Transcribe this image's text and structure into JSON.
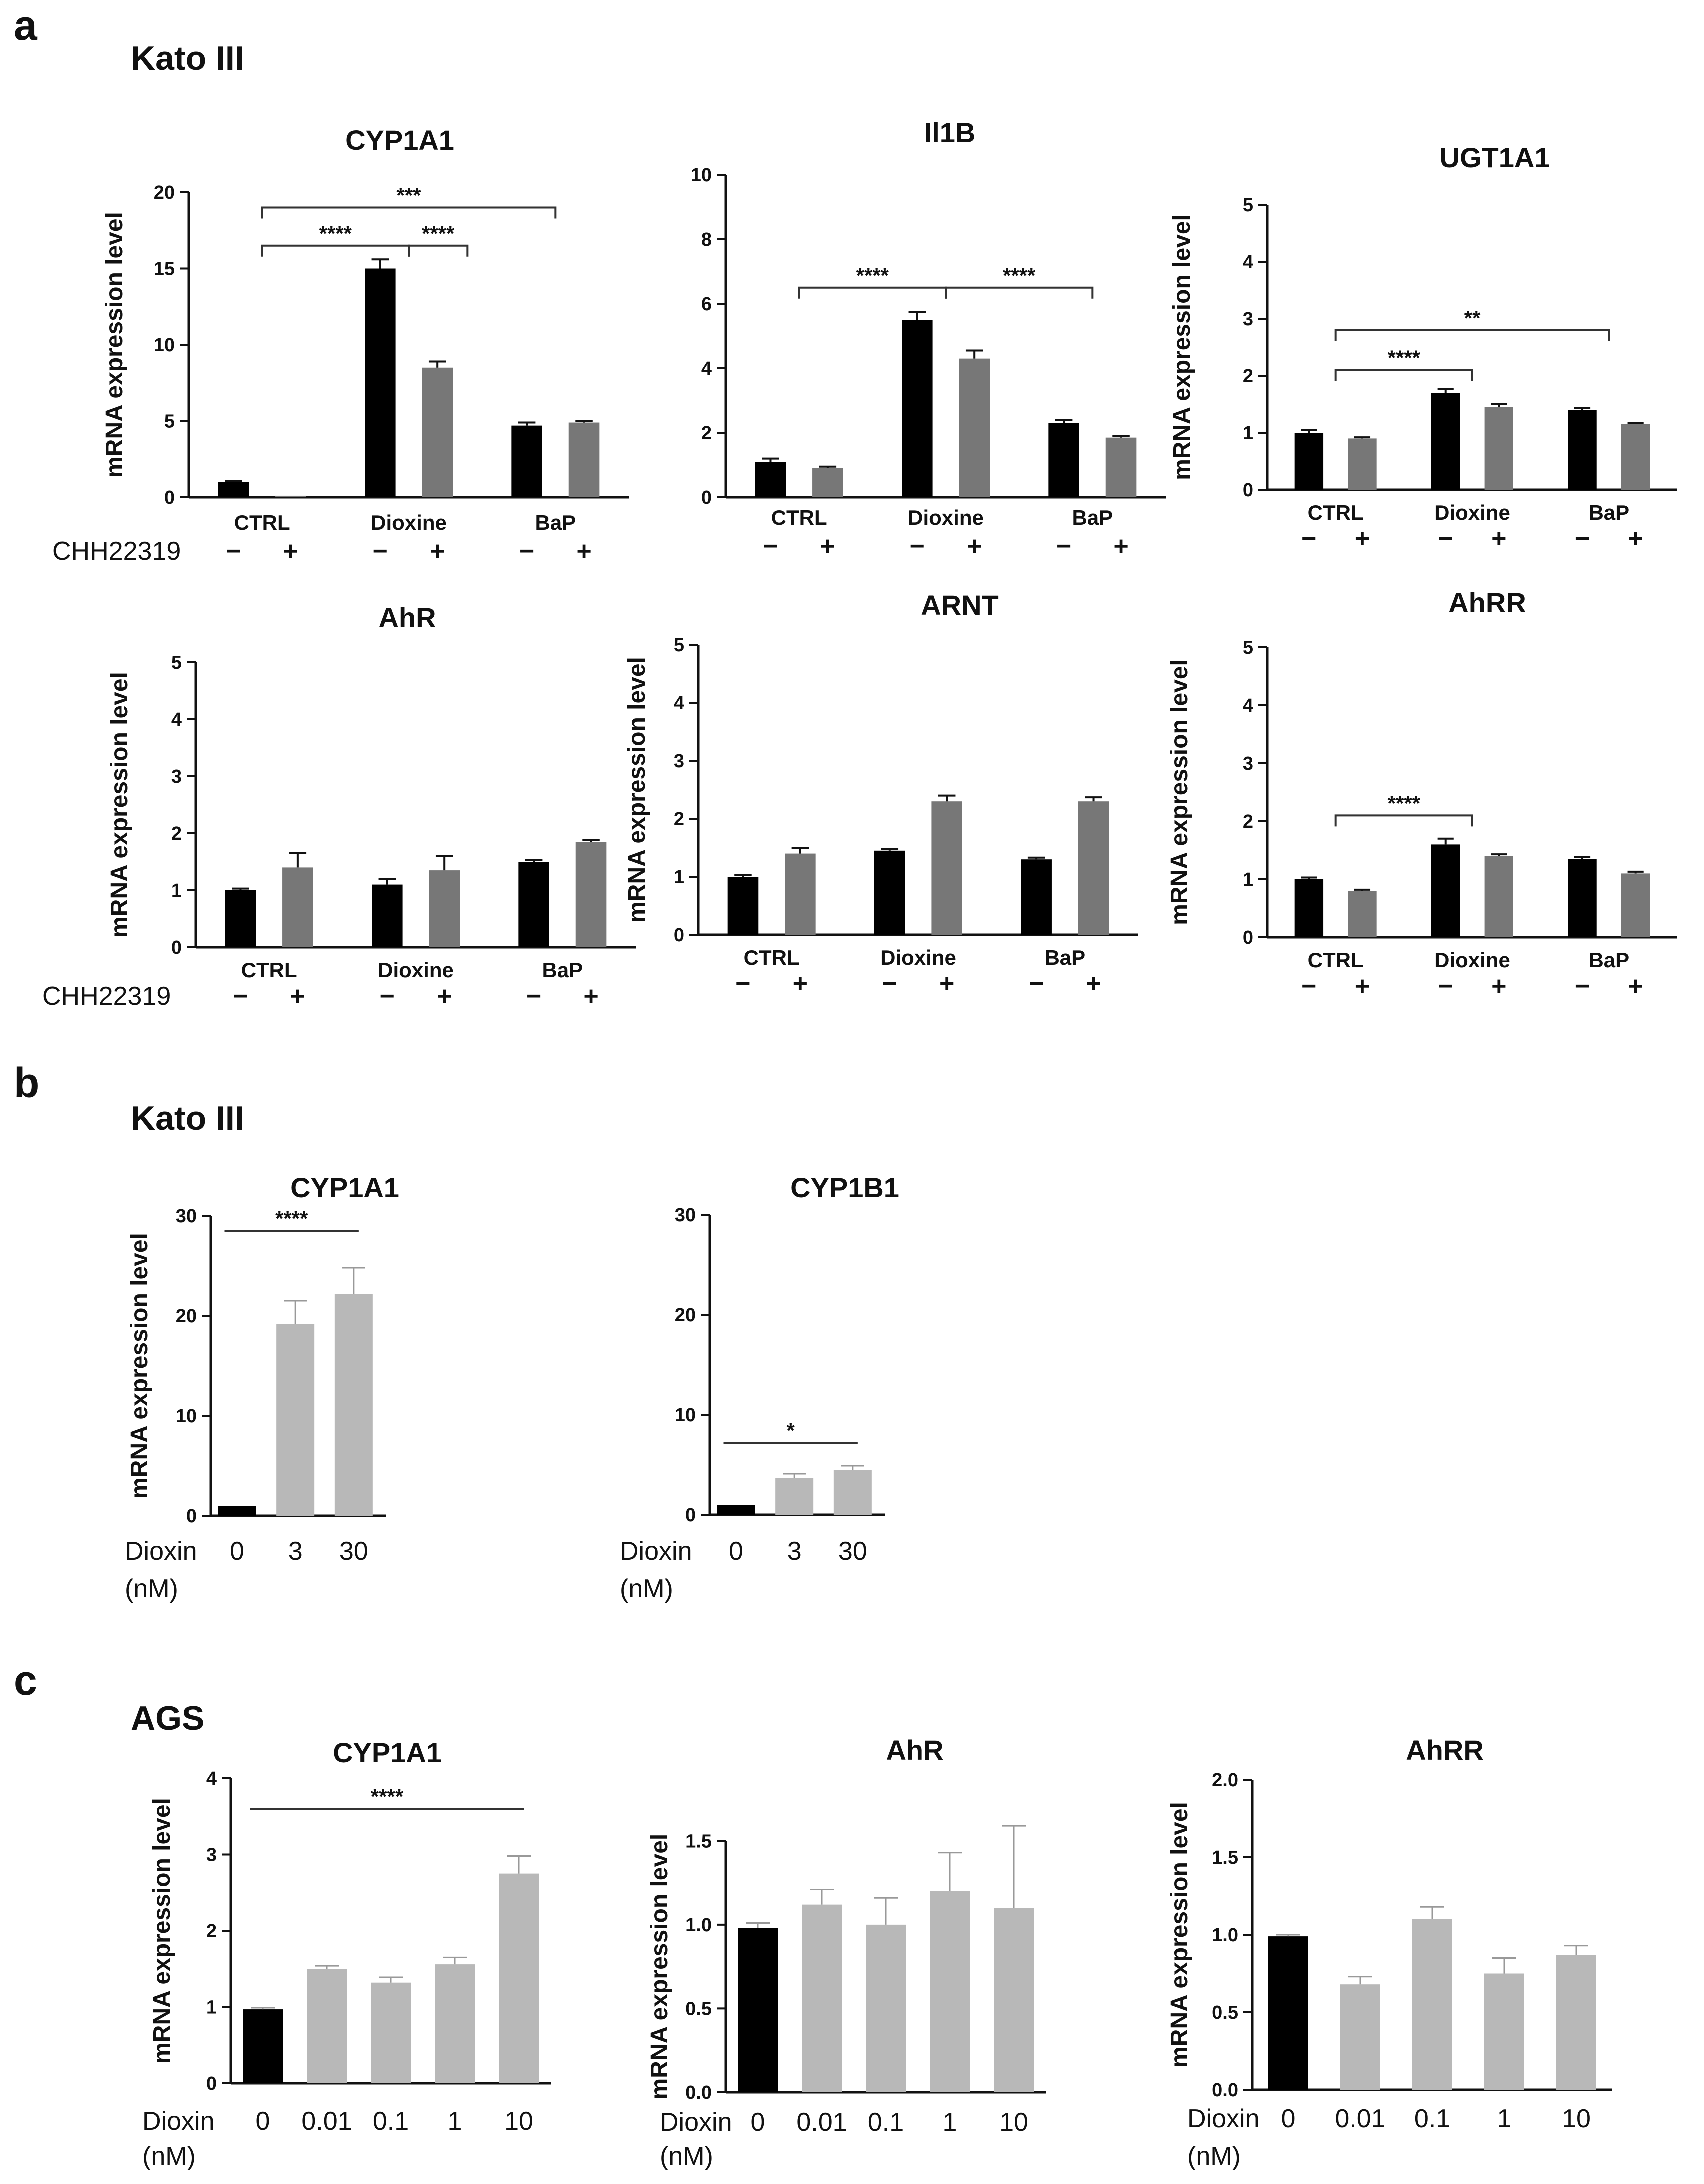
{
  "labels": {
    "panel_a": "a",
    "panel_b": "b",
    "panel_c": "c",
    "cell_kato": "Kato III",
    "cell_ags": "AGS",
    "treatment_row": "CHH22319",
    "minus": "−",
    "plus": "+",
    "dioxin_row": "Dioxin",
    "dioxin_unit": "(nM)",
    "ylabel": "mRNA expression level"
  },
  "colors": {
    "black_bar": "#000000",
    "gray_bar": "#777777",
    "light_bar": "#b8b8b8"
  },
  "chart_data": [
    {
      "id": "a1",
      "panel": "a",
      "type": "bar",
      "title": "CYP1A1",
      "xlabel": "",
      "ylabel": "mRNA expression level",
      "ylim": [
        0,
        20
      ],
      "ticks": [
        0,
        5,
        10,
        15,
        20
      ],
      "categories": [
        "CTRL",
        "Dioxine",
        "BaP"
      ],
      "series": [
        {
          "name": "CHH22319 −",
          "values": [
            1.0,
            15.0,
            4.7
          ],
          "errors": [
            0.05,
            0.6,
            0.2
          ]
        },
        {
          "name": "CHH22319 +",
          "values": [
            0.1,
            8.5,
            4.9
          ],
          "errors": [
            0.0,
            0.4,
            0.1
          ]
        }
      ],
      "significance": [
        {
          "label": "***",
          "from": 0,
          "to": 2,
          "level": 19
        },
        {
          "label": "****",
          "from": 0,
          "to": 1,
          "level": 16.5
        },
        {
          "label": "****",
          "from": 1,
          "to": 1.4,
          "level": 16.5
        }
      ]
    },
    {
      "id": "a2",
      "panel": "a",
      "type": "bar",
      "title": "Il1B",
      "xlabel": "",
      "ylabel": "",
      "ylim": [
        0,
        10
      ],
      "ticks": [
        0,
        2,
        4,
        6,
        8,
        10
      ],
      "categories": [
        "CTRL",
        "Dioxine",
        "BaP"
      ],
      "series": [
        {
          "name": "CHH22319 −",
          "values": [
            1.1,
            5.5,
            2.3
          ],
          "errors": [
            0.1,
            0.25,
            0.1
          ]
        },
        {
          "name": "CHH22319 +",
          "values": [
            0.9,
            4.3,
            1.85
          ],
          "errors": [
            0.05,
            0.25,
            0.05
          ]
        }
      ],
      "significance": [
        {
          "label": "****",
          "from": 0,
          "to": 1,
          "level": 6.5
        },
        {
          "label": "****",
          "from": 1,
          "to": 2,
          "level": 6.5
        }
      ]
    },
    {
      "id": "a3",
      "panel": "a",
      "type": "bar",
      "title": "UGT1A1",
      "xlabel": "",
      "ylabel": "mRNA expression level",
      "ylim": [
        0,
        5
      ],
      "ticks": [
        0,
        1,
        2,
        3,
        4,
        5
      ],
      "categories": [
        "CTRL",
        "Dioxine",
        "BaP"
      ],
      "series": [
        {
          "name": "CHH22319 −",
          "values": [
            1.0,
            1.7,
            1.4
          ],
          "errors": [
            0.05,
            0.07,
            0.03
          ]
        },
        {
          "name": "CHH22319 +",
          "values": [
            0.9,
            1.45,
            1.15
          ],
          "errors": [
            0.02,
            0.05,
            0.02
          ]
        }
      ],
      "significance": [
        {
          "label": "**",
          "from": 0,
          "to": 2,
          "level": 2.8
        },
        {
          "label": "****",
          "from": 0,
          "to": 1,
          "level": 2.1
        }
      ]
    },
    {
      "id": "a4",
      "panel": "a",
      "type": "bar",
      "title": "AhR",
      "xlabel": "",
      "ylabel": "mRNA expression level",
      "ylim": [
        0,
        5
      ],
      "ticks": [
        0,
        1,
        2,
        3,
        4,
        5
      ],
      "categories": [
        "CTRL",
        "Dioxine",
        "BaP"
      ],
      "series": [
        {
          "name": "CHH22319 −",
          "values": [
            1.0,
            1.1,
            1.5
          ],
          "errors": [
            0.03,
            0.1,
            0.03
          ]
        },
        {
          "name": "CHH22319 +",
          "values": [
            1.4,
            1.35,
            1.85
          ],
          "errors": [
            0.25,
            0.25,
            0.03
          ]
        }
      ],
      "significance": []
    },
    {
      "id": "a5",
      "panel": "a",
      "type": "bar",
      "title": "ARNT",
      "xlabel": "",
      "ylabel": "mRNA expression level",
      "ylim": [
        0,
        5
      ],
      "ticks": [
        0,
        1,
        2,
        3,
        4,
        5
      ],
      "categories": [
        "CTRL",
        "Dioxine",
        "BaP"
      ],
      "series": [
        {
          "name": "CHH22319 −",
          "values": [
            1.0,
            1.45,
            1.3
          ],
          "errors": [
            0.03,
            0.03,
            0.03
          ]
        },
        {
          "name": "CHH22319 +",
          "values": [
            1.4,
            2.3,
            2.3
          ],
          "errors": [
            0.1,
            0.1,
            0.07
          ]
        }
      ],
      "significance": []
    },
    {
      "id": "a6",
      "panel": "a",
      "type": "bar",
      "title": "AhRR",
      "xlabel": "",
      "ylabel": "mRNA expression level",
      "ylim": [
        0,
        5
      ],
      "ticks": [
        0,
        1,
        2,
        3,
        4,
        5
      ],
      "categories": [
        "CTRL",
        "Dioxine",
        "BaP"
      ],
      "series": [
        {
          "name": "CHH22319 −",
          "values": [
            1.0,
            1.6,
            1.35
          ],
          "errors": [
            0.03,
            0.1,
            0.03
          ]
        },
        {
          "name": "CHH22319 +",
          "values": [
            0.8,
            1.4,
            1.1
          ],
          "errors": [
            0.02,
            0.03,
            0.03
          ]
        }
      ],
      "significance": [
        {
          "label": "****",
          "from": 0,
          "to": 1,
          "level": 2.1
        }
      ]
    },
    {
      "id": "b1",
      "panel": "b",
      "type": "bar",
      "title": "CYP1A1",
      "xlabel": "Dioxin (nM)",
      "ylabel": "mRNA expression level",
      "ylim": [
        0,
        30
      ],
      "ticks": [
        0,
        10,
        20,
        30
      ],
      "categories": [
        "0",
        "3",
        "30"
      ],
      "values": [
        1.0,
        19.2,
        22.2
      ],
      "errors": [
        0.0,
        2.3,
        2.6
      ],
      "significance": [
        {
          "label": "****",
          "from": 0,
          "to": 2,
          "level": 28.5
        }
      ]
    },
    {
      "id": "b2",
      "panel": "b",
      "type": "bar",
      "title": "CYP1B1",
      "xlabel": "Dioxin (nM)",
      "ylabel": "",
      "ylim": [
        0,
        30
      ],
      "ticks": [
        0,
        10,
        20,
        30
      ],
      "categories": [
        "0",
        "3",
        "30"
      ],
      "values": [
        1.0,
        3.7,
        4.5
      ],
      "errors": [
        0.0,
        0.4,
        0.4
      ],
      "significance": [
        {
          "label": "*",
          "from": 0,
          "to": 2,
          "level": 7.2
        }
      ]
    },
    {
      "id": "c1",
      "panel": "c",
      "type": "bar",
      "title": "CYP1A1",
      "xlabel": "Dioxin (nM)",
      "ylabel": "mRNA expression level",
      "ylim": [
        0,
        4
      ],
      "ticks": [
        0,
        1,
        2,
        3,
        4
      ],
      "categories": [
        "0",
        "0.01",
        "0.1",
        "1",
        "10"
      ],
      "values": [
        0.97,
        1.5,
        1.32,
        1.56,
        2.75
      ],
      "errors": [
        0.02,
        0.04,
        0.07,
        0.09,
        0.23
      ],
      "significance": [
        {
          "label": "****",
          "from": 0,
          "to": 4,
          "level": 3.6
        }
      ]
    },
    {
      "id": "c2",
      "panel": "c",
      "type": "bar",
      "title": "AhR",
      "xlabel": "Dioxin (nM)",
      "ylabel": "mRNA expression level",
      "ylim": [
        0,
        1.85
      ],
      "ticks": [
        0.0,
        0.5,
        1.0,
        1.5
      ],
      "tick_labels": [
        "0.0",
        "0.5",
        "1.0",
        "1.5"
      ],
      "categories": [
        "0",
        "0.01",
        "0.1",
        "1",
        "10"
      ],
      "values": [
        0.98,
        1.12,
        1.0,
        1.2,
        1.1
      ],
      "errors": [
        0.03,
        0.09,
        0.16,
        0.23,
        0.49
      ],
      "significance": []
    },
    {
      "id": "c3",
      "panel": "c",
      "type": "bar",
      "title": "AhRR",
      "xlabel": "Dioxin (nM)",
      "ylabel": "mRNA expression level",
      "ylim": [
        0,
        2
      ],
      "ticks": [
        0.0,
        0.5,
        1.0,
        1.5,
        2.0
      ],
      "tick_labels": [
        "0.0",
        "0.5",
        "1.0",
        "1.5",
        "2.0"
      ],
      "categories": [
        "0",
        "0.01",
        "0.1",
        "1",
        "10"
      ],
      "values": [
        0.99,
        0.68,
        1.1,
        0.75,
        0.87
      ],
      "errors": [
        0.01,
        0.05,
        0.08,
        0.1,
        0.06
      ],
      "significance": []
    }
  ]
}
